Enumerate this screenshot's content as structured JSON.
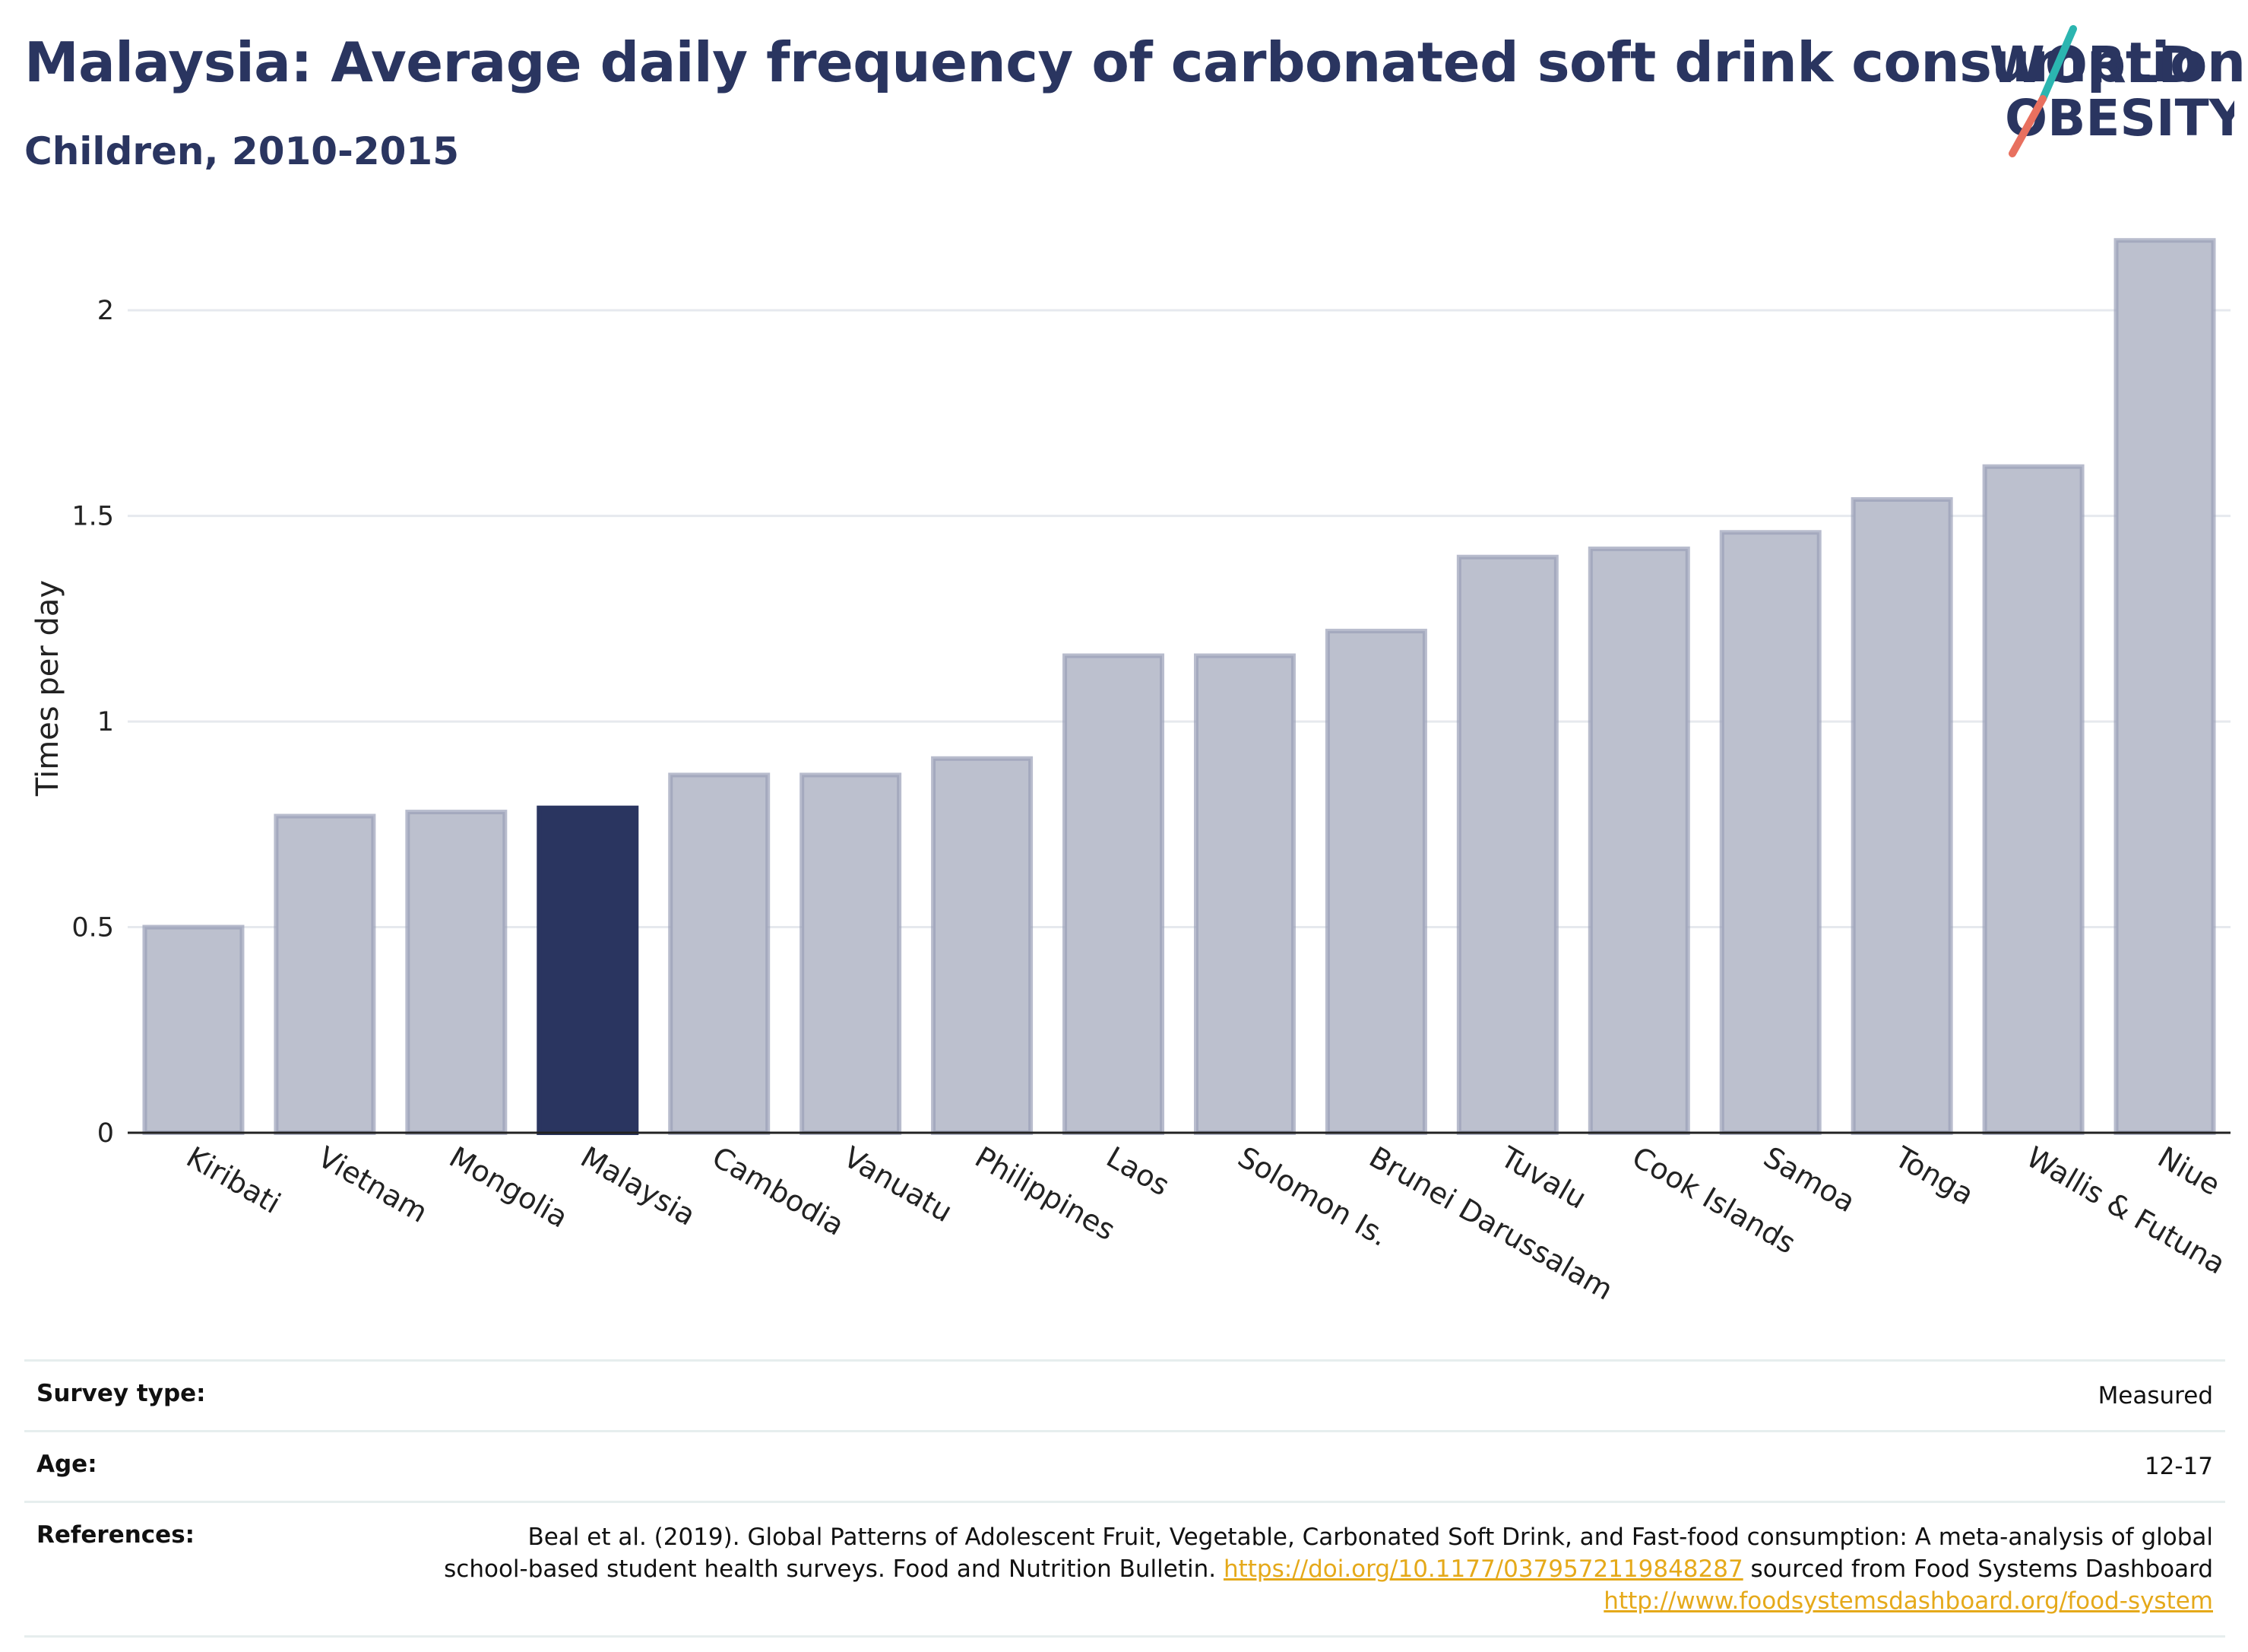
{
  "header": {
    "title": "Malaysia: Average daily frequency of carbonated soft drink consumption",
    "subtitle": "Children, 2010-2015"
  },
  "logo": {
    "line1": "WORLD",
    "line2": "OBESITY",
    "colors": {
      "text": "#2a3560",
      "slash_teal": "#2bb5b0",
      "slash_coral": "#e8705f"
    }
  },
  "colors": {
    "highlight_bar": "#2a3560",
    "other_bar_fill": "#bcc0ce",
    "other_bar_stroke": "#9aa0b8",
    "grid": "#e6e9ee",
    "axis": "#222222"
  },
  "chart_data": {
    "type": "bar",
    "ylabel": "Times per day",
    "xlabel": "",
    "ylim": [
      0,
      2.2
    ],
    "yticks": [
      0,
      0.5,
      1,
      1.5,
      2
    ],
    "ytick_labels": [
      "0",
      "0.5",
      "1",
      "1.5",
      "2"
    ],
    "grid": true,
    "highlight": "Malaysia",
    "categories": [
      "Kiribati",
      "Vietnam",
      "Mongolia",
      "Malaysia",
      "Cambodia",
      "Vanuatu",
      "Philippines",
      "Laos",
      "Solomon Is.",
      "Brunei Darussalam",
      "Tuvalu",
      "Cook Islands",
      "Samoa",
      "Tonga",
      "Wallis & Futuna",
      "Niue"
    ],
    "values": [
      0.5,
      0.77,
      0.78,
      0.79,
      0.87,
      0.87,
      0.91,
      1.16,
      1.16,
      1.22,
      1.4,
      1.42,
      1.46,
      1.54,
      1.62,
      2.17
    ]
  },
  "info": {
    "survey_type_label": "Survey type:",
    "survey_type_value": "Measured",
    "age_label": "Age:",
    "age_value": "12-17",
    "references_label": "References:",
    "ref_text_1": "Beal et al. (2019). Global Patterns of Adolescent Fruit, Vegetable, Carbonated Soft Drink, and Fast-food consumption: A meta-analysis of global school-based student health surveys. Food and Nutrition Bulletin. ",
    "ref_link_1": "https://doi.org/10.1177/0379572119848287",
    "ref_text_2": " sourced from Food Systems Dashboard ",
    "ref_link_2": "http://www.foodsystemsdashboard.org/food-system"
  }
}
